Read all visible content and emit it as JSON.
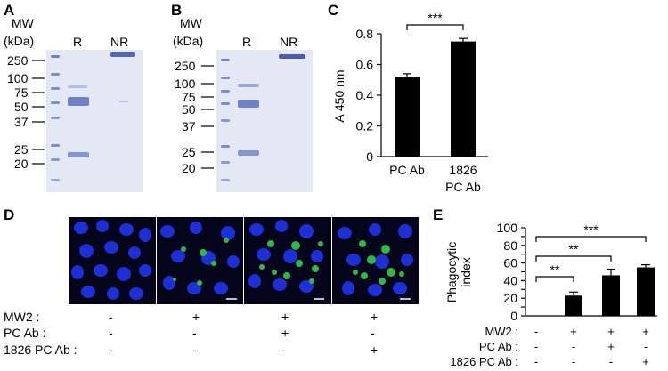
{
  "panels": {
    "A": "A",
    "B": "B",
    "C": "C",
    "D": "D",
    "E": "E"
  },
  "gel_A": {
    "mw_label": "MW",
    "kda_label": "(kDa)",
    "lanes": [
      "R",
      "NR"
    ],
    "markers": [
      "250",
      "100",
      "75",
      "50",
      "37",
      "25",
      "20"
    ]
  },
  "gel_B": {
    "mw_label": "MW",
    "kda_label": "(kDa)",
    "lanes": [
      "R",
      "NR"
    ],
    "markers": [
      "250",
      "100",
      "75",
      "50",
      "37",
      "25",
      "20"
    ]
  },
  "micrographs": {
    "scale_bar_color": "#ffffff",
    "conditions": [
      {
        "mw2": "-",
        "pc_ab": "-",
        "pc1826_ab": "-"
      },
      {
        "mw2": "+",
        "pc_ab": "-",
        "pc1826_ab": "-"
      },
      {
        "mw2": "+",
        "pc_ab": "+",
        "pc1826_ab": "-"
      },
      {
        "mw2": "+",
        "pc_ab": "-",
        "pc1826_ab": "+"
      }
    ],
    "row_labels": [
      "MW2 :",
      "PC Ab :",
      "1826 PC Ab :"
    ]
  },
  "chart_data": [
    {
      "panel": "C",
      "type": "bar",
      "categories": [
        "PC Ab",
        "1826\nPC Ab"
      ],
      "values": [
        0.52,
        0.75
      ],
      "errors": [
        0.02,
        0.02
      ],
      "ylabel": "A 450 nm",
      "ylim": [
        0,
        0.8
      ],
      "yticks": [
        "0",
        "0.2",
        "0.4",
        "0.6",
        "0.8"
      ],
      "significance": [
        {
          "from": 0,
          "to": 1,
          "label": "***"
        }
      ],
      "bar_color": "#000000"
    },
    {
      "panel": "E",
      "type": "bar",
      "categories": [
        "1",
        "2",
        "3",
        "4"
      ],
      "values": [
        0,
        23,
        46,
        55
      ],
      "errors": [
        0,
        4,
        7,
        3
      ],
      "ylabel": "Phagocytic\nindex",
      "ylim": [
        0,
        100
      ],
      "yticks": [
        "0",
        "10",
        "20",
        "30",
        "40",
        "50",
        "60",
        "70",
        "80",
        "90",
        "100"
      ],
      "significance": [
        {
          "from": 0,
          "to": 1,
          "label": "**"
        },
        {
          "from": 0,
          "to": 2,
          "label": "**"
        },
        {
          "from": 0,
          "to": 3,
          "label": "***"
        }
      ],
      "row_labels": [
        "MW2 :",
        "PC Ab :",
        "1826 PC Ab :"
      ],
      "conditions": [
        {
          "mw2": "-",
          "pc_ab": "-",
          "pc1826_ab": "-"
        },
        {
          "mw2": "+",
          "pc_ab": "-",
          "pc1826_ab": "-"
        },
        {
          "mw2": "+",
          "pc_ab": "+",
          "pc1826_ab": "-"
        },
        {
          "mw2": "+",
          "pc_ab": "-",
          "pc1826_ab": "+"
        }
      ],
      "bar_color": "#000000"
    }
  ]
}
